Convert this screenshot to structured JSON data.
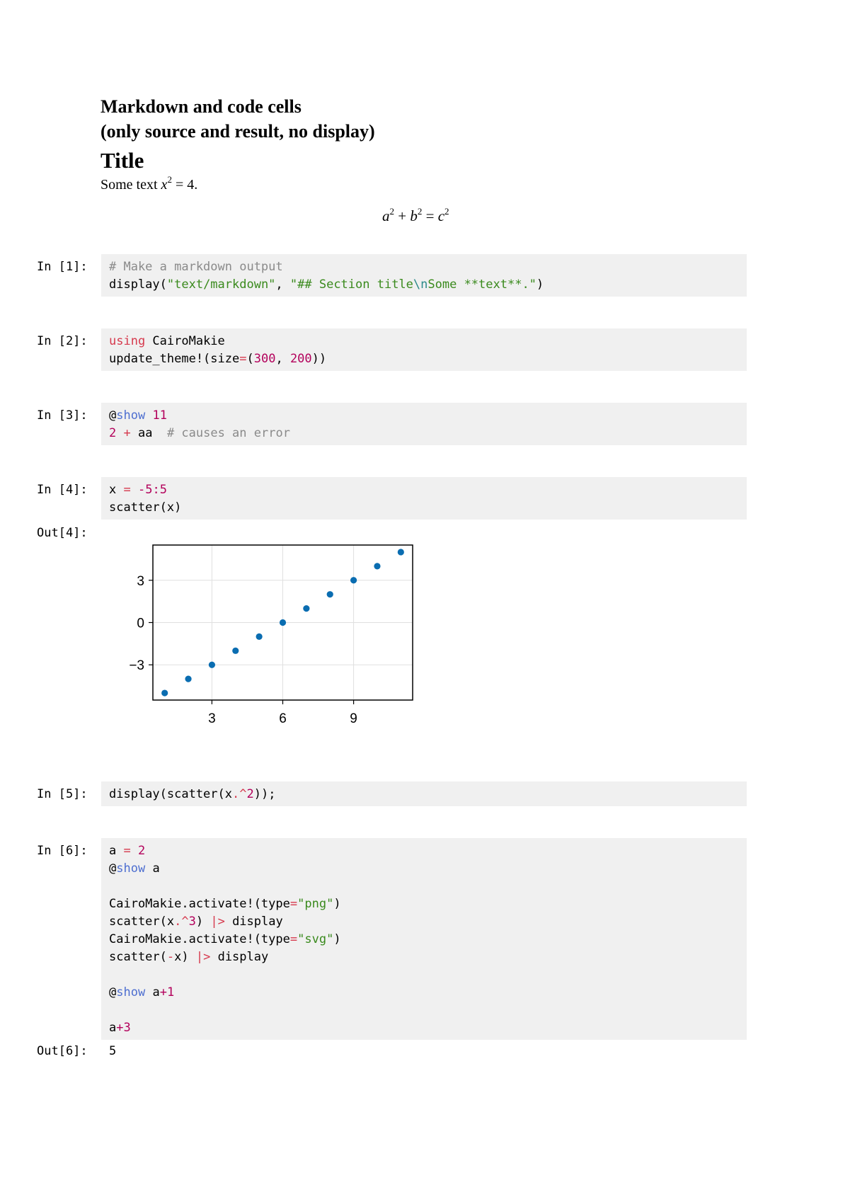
{
  "document": {
    "heading_line1": "Markdown and code cells",
    "heading_line2": "(only source and result, no display)",
    "title": "Title",
    "text_prefix": "Some text ",
    "text_math_base": "x",
    "text_math_sup": "2",
    "text_math_rest": " = 4.",
    "equation": {
      "a": "a",
      "a_sup": "2",
      "plus": " + ",
      "b": "b",
      "b_sup": "2",
      "eq": " = ",
      "c": "c",
      "c_sup": "2"
    }
  },
  "cells": {
    "in1": {
      "prompt": "In [1]:",
      "comment": "# Make a markdown output",
      "l2_fn": "display(",
      "l2_str1": "\"text/markdown\"",
      "l2_sep": ", ",
      "l2_str2a": "\"## Section title",
      "l2_esc": "\\n",
      "l2_str2b": "Some **text**.\"",
      "l2_end": ")"
    },
    "in2": {
      "prompt": "In [2]:",
      "kw": "using",
      "pkg": " CairoMakie",
      "l2_fn": "update_theme!(size",
      "l2_eq": "=",
      "l2_p": "(",
      "l2_n1": "300",
      "l2_sep": ", ",
      "l2_n2": "200",
      "l2_end": "))"
    },
    "in3": {
      "prompt": "In [3]:",
      "at": "@",
      "macro": "show",
      "sp": " ",
      "num": "11",
      "l2_num": "2",
      "l2_sp": " ",
      "l2_op": "+",
      "l2_var": " aa  ",
      "l2_comment": "# causes an error"
    },
    "in4": {
      "prompt": "In [4]:",
      "var": "x ",
      "eq": "=",
      "sp": " ",
      "range": "-5:5",
      "l2": "scatter(x)"
    },
    "out4": {
      "prompt": "Out[4]:"
    },
    "in5": {
      "prompt": "In [5]:",
      "a": "display(scatter(x",
      "op": ".^",
      "num": "2",
      "b": "));"
    },
    "in6": {
      "prompt": "In [6]:",
      "l1_var": "a ",
      "l1_eq": "=",
      "l1_sp": " ",
      "l1_num": "2",
      "l2_at": "@",
      "l2_macro": "show",
      "l2_rest": " a",
      "l4_a": "CairoMakie.activate!(type",
      "l4_eq": "=",
      "l4_str": "\"png\"",
      "l4_b": ")",
      "l5_a": "scatter(x",
      "l5_op": ".^",
      "l5_num": "3",
      "l5_b": ") ",
      "l5_pipe": "|>",
      "l5_c": " display",
      "l6_a": "CairoMakie.activate!(type",
      "l6_eq": "=",
      "l6_str": "\"svg\"",
      "l6_b": ")",
      "l7_a": "scatter(",
      "l7_neg": "-",
      "l7_b": "x) ",
      "l7_pipe": "|>",
      "l7_c": " display",
      "l9_at": "@",
      "l9_macro": "show",
      "l9_a": " a",
      "l9_op": "+",
      "l9_num": "1",
      "l11_a": "a",
      "l11_op": "+",
      "l11_num": "3"
    },
    "out6": {
      "prompt": "Out[6]:",
      "value": "5"
    }
  },
  "colors": {
    "point": "#0a6db1",
    "cell_bg": "#f0f0f0",
    "grid": "#e0e0e0"
  },
  "chart_data": {
    "type": "scatter",
    "x": [
      1,
      2,
      3,
      4,
      5,
      6,
      7,
      8,
      9,
      10,
      11
    ],
    "y": [
      -5,
      -4,
      -3,
      -2,
      -1,
      0,
      1,
      2,
      3,
      4,
      5
    ],
    "xticks": [
      3,
      6,
      9
    ],
    "yticks": [
      3,
      0,
      -3
    ],
    "xtick_labels": [
      "3",
      "6",
      "9"
    ],
    "ytick_labels": [
      "3",
      "0",
      "−3"
    ],
    "xlim": [
      0.5,
      11.5
    ],
    "ylim": [
      -5.5,
      5.5
    ],
    "grid": true,
    "title": "",
    "xlabel": "",
    "ylabel": ""
  }
}
